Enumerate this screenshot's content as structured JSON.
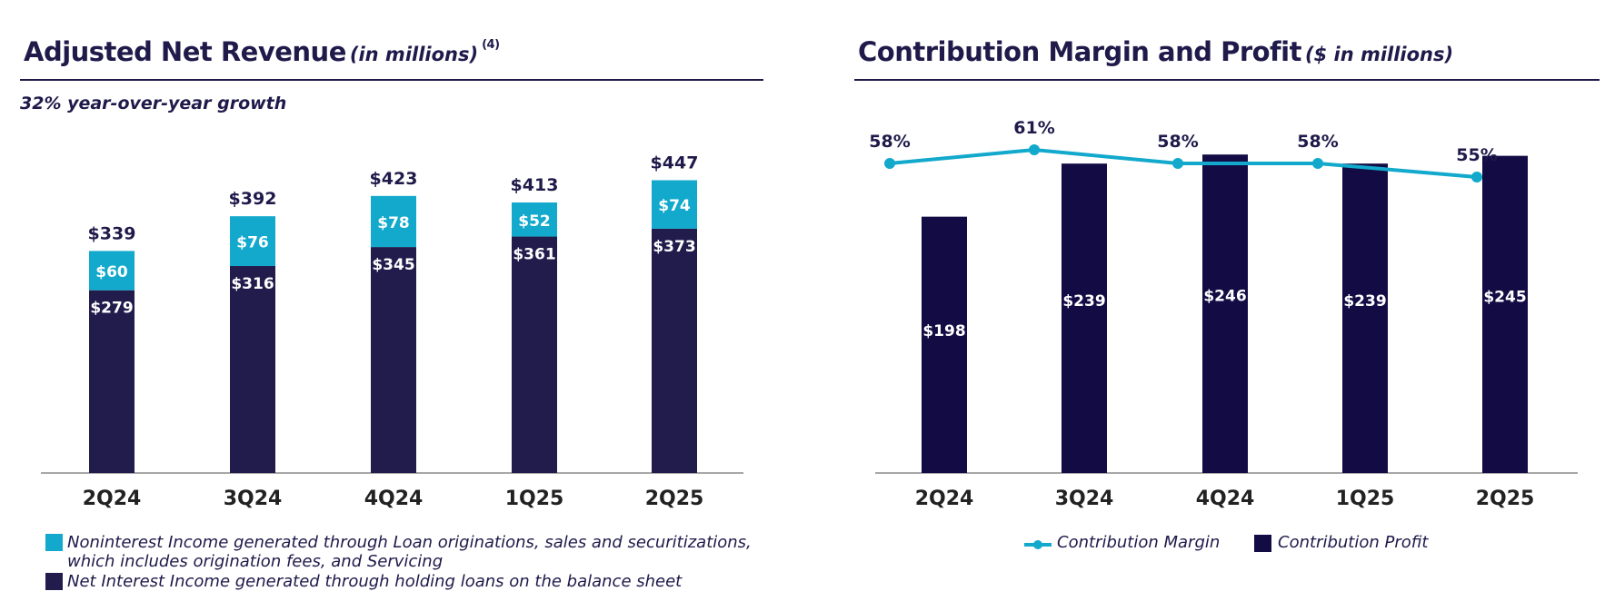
{
  "left_chart": {
    "title": "Adjusted Net Revenue",
    "title_unit": "(in millions)",
    "title_note": "(4)",
    "subtitle": "32% year-over-year growth",
    "legend": {
      "noninterest_line1": "Noninterest Income generated through Loan originations, sales and securitizations,",
      "noninterest_line2": "which includes origination fees, and Servicing",
      "net_interest": "Net Interest Income generated through holding loans on the balance sheet"
    }
  },
  "right_chart": {
    "title": "Contribution Margin and Profit",
    "title_unit": "($ in millions)",
    "legend": {
      "margin": "Contribution Margin",
      "profit": "Contribution Profit"
    }
  },
  "colors": {
    "navy": "#221c4d",
    "dark_navy": "#130b44",
    "cyan": "#12a9cc",
    "text": "#1f1a4a",
    "axis": "#8a8a8a"
  },
  "chart_data": [
    {
      "type": "bar",
      "stacked": true,
      "title": "Adjusted Net Revenue (in millions) (4)",
      "subtitle": "32% year-over-year growth",
      "categories": [
        "2Q24",
        "3Q24",
        "4Q24",
        "1Q25",
        "2Q25"
      ],
      "series": [
        {
          "name": "Net Interest Income generated through holding loans on the balance sheet",
          "values": [
            279,
            316,
            345,
            361,
            373
          ],
          "labels": [
            "$279",
            "$316",
            "$345",
            "$361",
            "$373"
          ]
        },
        {
          "name": "Noninterest Income generated through Loan originations, sales and securitizations, which includes origination fees, and Servicing",
          "values": [
            60,
            76,
            78,
            52,
            74
          ],
          "labels": [
            "$60",
            "$76",
            "$78",
            "$52",
            "$74"
          ]
        }
      ],
      "totals": [
        339,
        392,
        423,
        413,
        447
      ],
      "total_labels": [
        "$339",
        "$392",
        "$423",
        "$413",
        "$447"
      ],
      "ylim": [
        0,
        460
      ]
    },
    {
      "type": "bar",
      "title": "Contribution Margin and Profit ($ in millions)",
      "categories": [
        "2Q24",
        "3Q24",
        "4Q24",
        "1Q25",
        "2Q25"
      ],
      "series": [
        {
          "name": "Contribution Profit",
          "values": [
            198,
            239,
            246,
            239,
            245
          ],
          "labels": [
            "$198",
            "$239",
            "$246",
            "$239",
            "$245"
          ]
        },
        {
          "name": "Contribution Margin",
          "type": "line",
          "values": [
            58,
            61,
            58,
            58,
            55
          ],
          "unit": "%",
          "labels": [
            "58%",
            "61%",
            "58%",
            "58%",
            "55%"
          ]
        }
      ],
      "ylim": [
        0,
        280
      ]
    }
  ]
}
